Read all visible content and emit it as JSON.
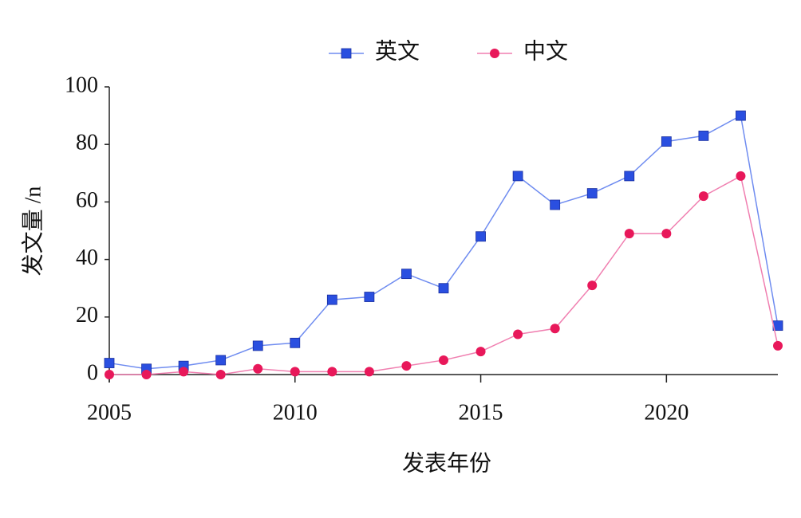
{
  "chart_data": {
    "type": "line",
    "x_label": "发表年份",
    "y_label": "发文量 /n",
    "x": [
      2005,
      2006,
      2007,
      2008,
      2009,
      2010,
      2011,
      2012,
      2013,
      2014,
      2015,
      2016,
      2017,
      2018,
      2019,
      2020,
      2021,
      2022,
      2023
    ],
    "series": [
      {
        "name": "英文",
        "color": "#2a4fe0",
        "line_color": "#6f8cf0",
        "marker": "square",
        "values": [
          4,
          2,
          3,
          5,
          10,
          11,
          26,
          27,
          35,
          30,
          48,
          69,
          59,
          63,
          69,
          81,
          83,
          90,
          17
        ]
      },
      {
        "name": "中文",
        "color": "#e8185a",
        "line_color": "#f07fb0",
        "marker": "circle",
        "values": [
          0,
          0,
          1,
          0,
          2,
          1,
          1,
          1,
          3,
          5,
          8,
          14,
          16,
          31,
          49,
          49,
          62,
          69,
          10
        ]
      }
    ],
    "xlim": [
      2005,
      2023
    ],
    "xticks": [
      2005,
      2010,
      2015,
      2020
    ],
    "ylim": [
      0,
      100
    ],
    "yticks": [
      0,
      20,
      40,
      60,
      80,
      100
    ],
    "legend": "top"
  }
}
